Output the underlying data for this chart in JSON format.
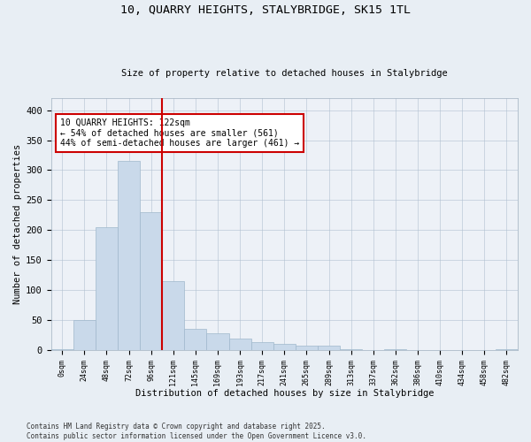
{
  "title_line1": "10, QUARRY HEIGHTS, STALYBRIDGE, SK15 1TL",
  "title_line2": "Size of property relative to detached houses in Stalybridge",
  "xlabel": "Distribution of detached houses by size in Stalybridge",
  "ylabel": "Number of detached properties",
  "bar_color": "#c9d9ea",
  "bar_edge_color": "#a0b8cc",
  "vline_color": "#cc0000",
  "vline_x": 5,
  "annotation_text": "10 QUARRY HEIGHTS: 122sqm\n← 54% of detached houses are smaller (561)\n44% of semi-detached houses are larger (461) →",
  "annotation_box_color": "#ffffff",
  "annotation_box_edge": "#cc0000",
  "tick_labels": [
    "0sqm",
    "24sqm",
    "48sqm",
    "72sqm",
    "96sqm",
    "121sqm",
    "145sqm",
    "169sqm",
    "193sqm",
    "217sqm",
    "241sqm",
    "265sqm",
    "289sqm",
    "313sqm",
    "337sqm",
    "362sqm",
    "386sqm",
    "410sqm",
    "434sqm",
    "458sqm",
    "482sqm"
  ],
  "bar_values": [
    1,
    50,
    205,
    315,
    230,
    115,
    35,
    28,
    20,
    14,
    10,
    8,
    8,
    2,
    0,
    2,
    0,
    0,
    0,
    0,
    1
  ],
  "ylim": [
    0,
    420
  ],
  "yticks": [
    0,
    50,
    100,
    150,
    200,
    250,
    300,
    350,
    400
  ],
  "footer_text": "Contains HM Land Registry data © Crown copyright and database right 2025.\nContains public sector information licensed under the Open Government Licence v3.0.",
  "bg_color": "#e8eef4",
  "plot_bg_color": "#edf1f7"
}
